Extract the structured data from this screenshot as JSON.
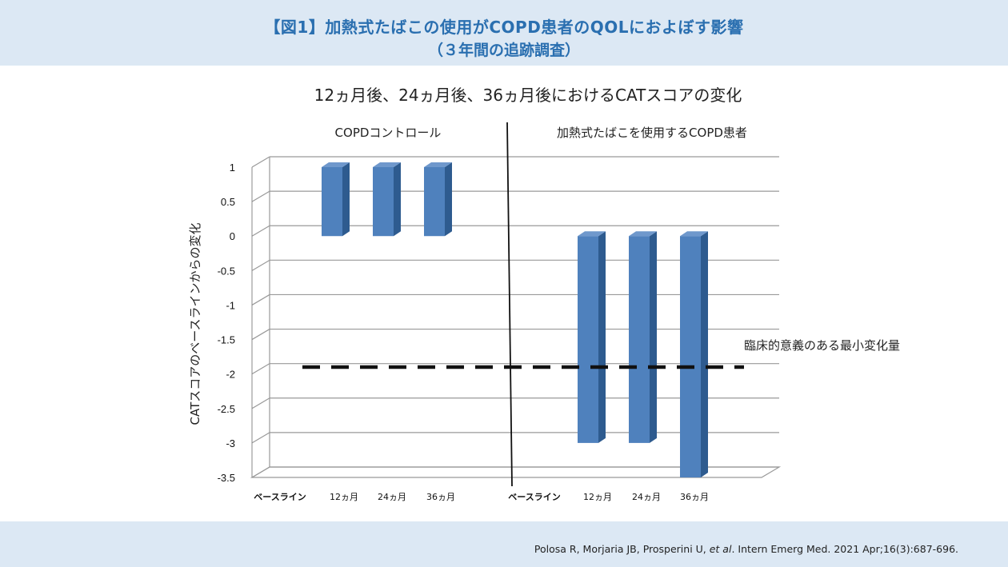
{
  "header": {
    "title_line1": "【図1】加熱式たばこの使用がCOPD患者のQOLにおよぼす影響",
    "title_line2": "（３年間の追跡調査）"
  },
  "footer": {
    "citation_pre": "Polosa R, Morjaria JB, Prosperini U, ",
    "citation_em": "et al",
    "citation_post": ". Intern Emerg Med. 2021 Apr;16(3):687-696."
  },
  "colors": {
    "bar": "#4f81bd",
    "bar_side": "#2e5b8f",
    "band": "#dce8f4",
    "title": "#2a6fb0"
  },
  "chart_data": {
    "type": "bar",
    "title": "12ヵ月後、24ヵ月後、36ヵ月後におけるCATスコアの変化",
    "ylabel": "CATスコアのベースラインからの変化",
    "ylim": [
      -3.5,
      1
    ],
    "yticks": [
      "1",
      "0.5",
      "0",
      "-0.5",
      "-1",
      "-1.5",
      "-2",
      "-2.5",
      "-3",
      "-3.5"
    ],
    "groups": [
      {
        "name": "COPDコントロール",
        "categories": [
          "ベースライン",
          "12ヵ月",
          "24ヵ月",
          "36ヵ月"
        ],
        "values": [
          0,
          1,
          1,
          1
        ]
      },
      {
        "name": "加熱式たばこを使用するCOPD患者",
        "categories": [
          "ベースライン",
          "12ヵ月",
          "24ヵ月",
          "36ヵ月"
        ],
        "values": [
          0,
          -3,
          -3,
          -3.5
        ]
      }
    ],
    "reference_line": {
      "label": "臨床的意義のある最小変化量",
      "value": -1.9
    },
    "grid": true
  }
}
